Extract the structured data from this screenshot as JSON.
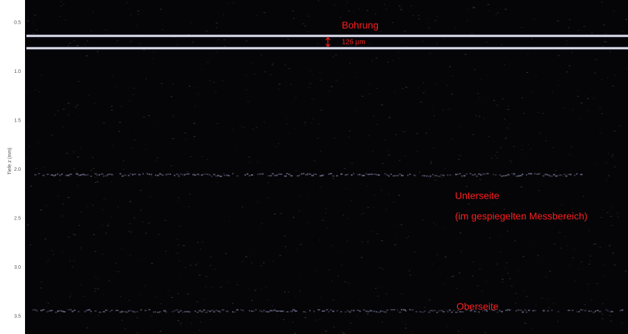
{
  "chart_data": {
    "type": "heatmap",
    "ylabel": "Tiefe z (mm)",
    "xlabel": "",
    "ylim": [
      0.4,
      3.55
    ],
    "y_ticks": [
      0.5,
      1.0,
      1.5,
      2.0,
      2.5,
      3.0,
      3.5
    ],
    "y_tick_labels": [
      "0.5",
      "1.0",
      "1.5",
      "2.0",
      "2.5",
      "3.0",
      "3.5"
    ],
    "grid": false,
    "colormap": "dark background, bright reflection lines",
    "reflection_lines": [
      {
        "depth_mm": 0.64,
        "intensity": 1.0
      },
      {
        "depth_mm": 0.765,
        "intensity": 1.0
      },
      {
        "depth_mm": 2.06,
        "intensity": 0.45
      },
      {
        "depth_mm": 3.45,
        "intensity": 0.4
      }
    ],
    "annotations": [
      {
        "text": "Bohrung",
        "depth_mm": 0.53
      },
      {
        "text": "126 µm",
        "depth_mm": 0.7
      },
      {
        "text": "Unterseite",
        "depth_mm": 2.27
      },
      {
        "text": "(im gespiegelten Messbereich)",
        "depth_mm": 2.48
      },
      {
        "text": "Oberseite",
        "depth_mm": 3.4
      }
    ],
    "colors": {
      "background": "#050507",
      "line": "#f2f4ff",
      "faint_line": "#9a9cc8",
      "annotation": "#ff1e1e"
    }
  }
}
